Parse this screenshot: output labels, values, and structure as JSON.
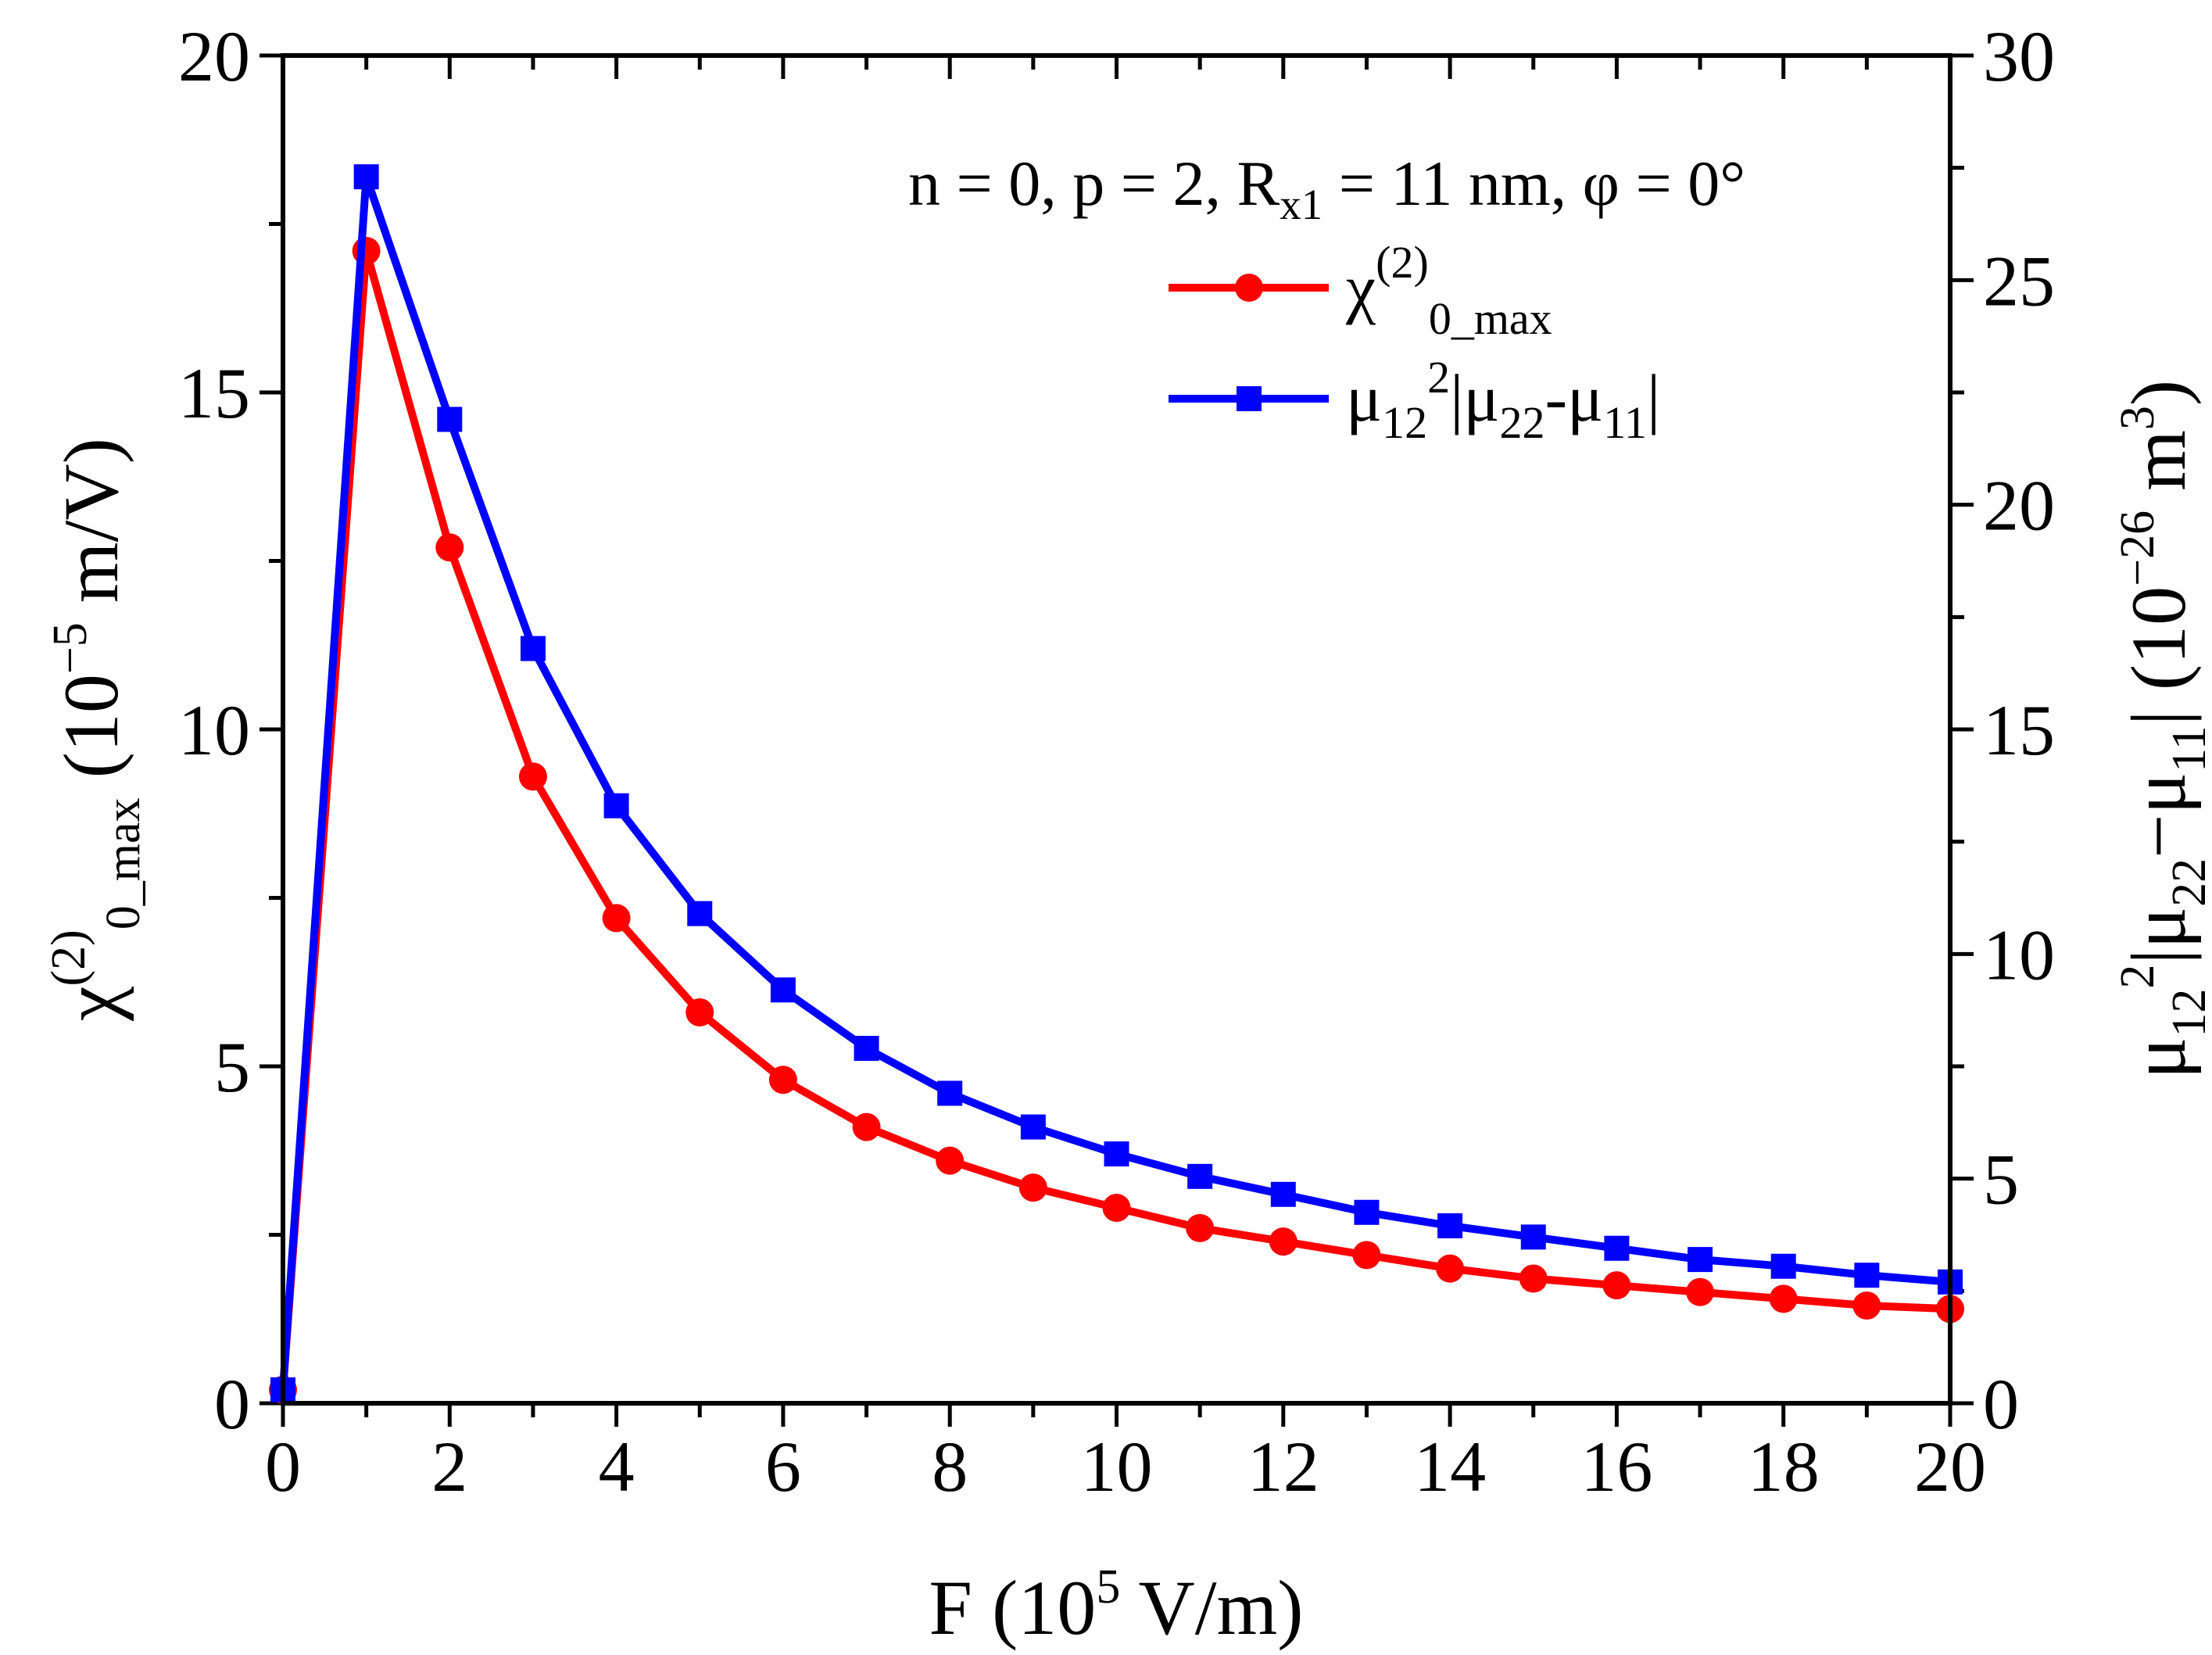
{
  "chart_data": {
    "type": "line",
    "title": "",
    "annotation": {
      "parts": [
        "n = 0, p = 2, R",
        "x1",
        " = 11 nm, φ = 0°"
      ]
    },
    "x": [
      0,
      1,
      2,
      3,
      4,
      5,
      6,
      7,
      8,
      9,
      10,
      11,
      12,
      13,
      14,
      15,
      16,
      17,
      18,
      19,
      20
    ],
    "xlim": [
      0,
      20
    ],
    "xticks": [
      "0",
      "2",
      "4",
      "6",
      "8",
      "10",
      "12",
      "14",
      "16",
      "18",
      "20"
    ],
    "xlabel": {
      "a": "F (10",
      "sup": "5",
      "b": " V/m)"
    },
    "ylim": [
      0,
      20
    ],
    "yticks": [
      "0",
      "5",
      "10",
      "15",
      "20"
    ],
    "ylabel": {
      "a": "χ",
      "sup": "(2)",
      "sub": "0_max",
      "b": " (10",
      "sup2": "−5",
      "c": " m/V)"
    },
    "y2lim": [
      0,
      30
    ],
    "y2ticks": [
      "0",
      "5",
      "10",
      "15",
      "20",
      "25",
      "30"
    ],
    "y2label": {
      "a": "μ",
      "sub1": "12",
      "sup1": "2",
      "b": "|μ",
      "sub2": "22",
      "c": "−μ",
      "sub3": "11",
      "d": "| (10",
      "sup2": "−26",
      "e": " m",
      "sup3": "3",
      "f": ")"
    },
    "series": [
      {
        "name": "χ(2)0_max",
        "legend": {
          "a": "χ",
          "sup": "(2)",
          "sub": "0_max"
        },
        "axis": "left",
        "color": "#ff0000",
        "marker": "circle",
        "values": [
          0.2,
          17.1,
          12.7,
          9.3,
          7.2,
          5.8,
          4.8,
          4.1,
          3.6,
          3.2,
          2.9,
          2.6,
          2.4,
          2.2,
          2.0,
          1.85,
          1.75,
          1.65,
          1.55,
          1.45,
          1.4
        ]
      },
      {
        "name": "μ12²|μ22-μ11|",
        "legend": {
          "a": "μ",
          "sub1": "12",
          "sup1": "2",
          "b": "|μ",
          "sub2": "22",
          "c": "-μ",
          "sub3": "11",
          "d": "|"
        },
        "axis": "right",
        "color": "#0000ff",
        "marker": "square",
        "values": [
          0.3,
          27.3,
          21.9,
          16.8,
          13.3,
          10.9,
          9.2,
          7.9,
          6.9,
          6.15,
          5.55,
          5.05,
          4.65,
          4.25,
          3.95,
          3.7,
          3.45,
          3.2,
          3.05,
          2.85,
          2.7
        ]
      }
    ],
    "legend_position": "top-right",
    "grid": false
  }
}
